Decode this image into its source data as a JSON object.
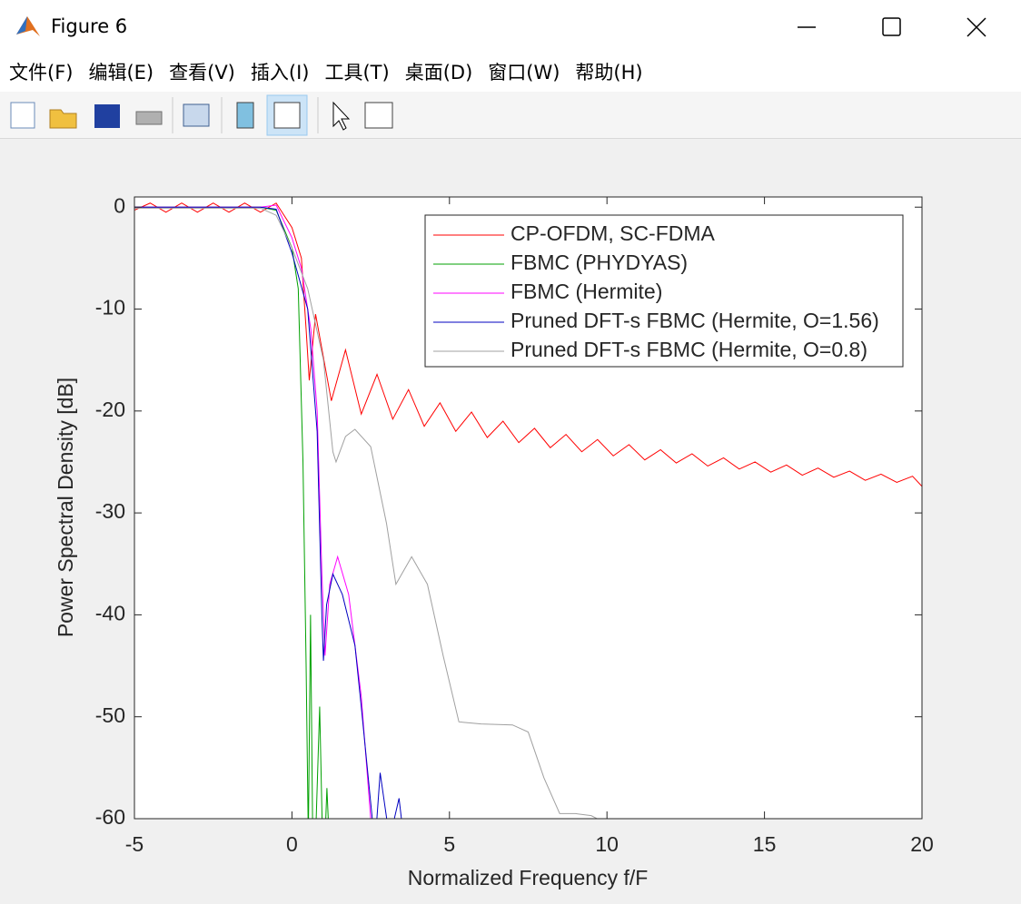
{
  "window": {
    "title": "Figure 6",
    "menu": [
      "文件(F)",
      "编辑(E)",
      "查看(V)",
      "插入(I)",
      "工具(T)",
      "桌面(D)",
      "窗口(W)",
      "帮助(H)"
    ]
  },
  "chart_data": {
    "type": "line",
    "xlabel": "Normalized Frequency f/F",
    "ylabel": "Power Spectral Density [dB]",
    "xlim": [
      -5,
      20
    ],
    "ylim": [
      -60,
      1
    ],
    "xticks": [
      -5,
      0,
      5,
      10,
      15,
      20
    ],
    "yticks": [
      0,
      -10,
      -20,
      -30,
      -40,
      -50,
      -60
    ],
    "legend": "upper right",
    "series": [
      {
        "name": "CP-OFDM, SC-FDMA",
        "color": "#ff0000",
        "x": [
          -5,
          -4.5,
          -4,
          -3.5,
          -3,
          -2.5,
          -2,
          -1.5,
          -1,
          -0.5,
          0,
          0.3,
          0.45,
          0.55,
          0.75,
          1.25,
          1.7,
          2.2,
          2.7,
          3.2,
          3.7,
          4.2,
          4.7,
          5.2,
          5.7,
          6.2,
          6.7,
          7.2,
          7.7,
          8.2,
          8.7,
          9.2,
          9.7,
          10.2,
          10.7,
          11.2,
          11.7,
          12.2,
          12.7,
          13.2,
          13.7,
          14.2,
          14.7,
          15.2,
          15.7,
          16.2,
          16.7,
          17.2,
          17.7,
          18.2,
          18.7,
          19.2,
          19.7,
          20
        ],
        "values": [
          -0.3,
          0.4,
          -0.5,
          0.4,
          -0.5,
          0.4,
          -0.5,
          0.4,
          -0.5,
          0.4,
          -2,
          -5,
          -12,
          -17,
          -10.5,
          -19,
          -14,
          -20.3,
          -16.4,
          -20.8,
          -17.9,
          -21.5,
          -19.2,
          -22,
          -20.1,
          -22.6,
          -21,
          -23.1,
          -21.7,
          -23.6,
          -22.3,
          -24,
          -22.8,
          -24.4,
          -23.3,
          -24.8,
          -23.8,
          -25.1,
          -24.2,
          -25.4,
          -24.6,
          -25.7,
          -25,
          -26,
          -25.3,
          -26.3,
          -25.6,
          -26.5,
          -25.9,
          -26.8,
          -26.2,
          -27,
          -26.4,
          -27.4
        ]
      },
      {
        "name": "FBMC (PHYDYAS)",
        "color": "#00a000",
        "x": [
          -5,
          -1,
          -0.5,
          0,
          0.2,
          0.35,
          0.45,
          0.52,
          0.59,
          0.66,
          0.75,
          0.88,
          0.97,
          1.05,
          1.11,
          1.18
        ],
        "values": [
          0,
          0,
          -0.3,
          -4,
          -8,
          -25,
          -45,
          -62,
          -40,
          -62,
          -62,
          -49,
          -62,
          -62,
          -57,
          -62
        ]
      },
      {
        "name": "FBMC (Hermite)",
        "color": "#ff00ff",
        "x": [
          -5,
          -1,
          -0.5,
          0,
          0.3,
          0.6,
          0.8,
          0.95,
          1.05,
          1.2,
          1.45,
          1.8,
          2.2,
          2.5,
          2.6
        ],
        "values": [
          0,
          0,
          0.2,
          -3,
          -6,
          -12,
          -20,
          -36,
          -44,
          -37,
          -34.3,
          -38,
          -48,
          -60,
          -62
        ]
      },
      {
        "name": "Pruned DFT-s FBMC (Hermite, O=1.56)",
        "color": "#0000c0",
        "x": [
          -5,
          -1,
          -0.5,
          0,
          0.5,
          0.8,
          0.95,
          1.0,
          1.1,
          1.3,
          1.6,
          2.0,
          2.2,
          2.55,
          2.65,
          2.8,
          3.1,
          3.4,
          3.55
        ],
        "values": [
          0,
          0,
          -0.2,
          -4.5,
          -10,
          -22,
          -40,
          -44.5,
          -39,
          -36,
          -38,
          -43,
          -49,
          -60,
          -62,
          -55.5,
          -62,
          -58,
          -62
        ]
      },
      {
        "name": "Pruned DFT-s FBMC (Hermite, O=0.8)",
        "color": "#a0a0a0",
        "x": [
          -5,
          -1,
          -0.5,
          0,
          0.5,
          1,
          1.3,
          1.4,
          1.7,
          2,
          2.5,
          3,
          3.3,
          3.8,
          4.3,
          4.8,
          5.3,
          6,
          7,
          7.5,
          8,
          8.5,
          9,
          9.5,
          10
        ],
        "values": [
          -0.1,
          -0.1,
          -0.8,
          -4,
          -8,
          -15,
          -24,
          -25,
          -22.5,
          -21.8,
          -23.5,
          -31,
          -37,
          -34.3,
          -37,
          -44,
          -50.5,
          -50.7,
          -50.8,
          -51.5,
          -56,
          -59.5,
          -59.5,
          -59.7,
          -60.5
        ]
      }
    ]
  }
}
